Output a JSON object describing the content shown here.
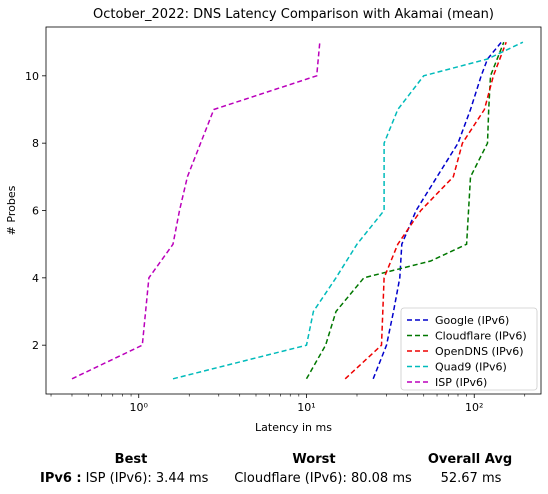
{
  "chart_data": {
    "type": "line",
    "title": "October_2022: DNS Latency Comparison with Akamai (mean)",
    "xlabel": "Latency in ms",
    "ylabel": "# Probes",
    "xscale": "log",
    "xlim": [
      0.28,
      250
    ],
    "ylim": [
      0.55,
      11.45
    ],
    "xticks": [
      {
        "value": 1,
        "label": "10⁰"
      },
      {
        "value": 10,
        "label": "10¹"
      },
      {
        "value": 100,
        "label": "10²"
      }
    ],
    "yticks": [
      2,
      4,
      6,
      8,
      10
    ],
    "grid": false,
    "legend": "lower-right",
    "series": [
      {
        "name": "Google (IPv6)",
        "color": "#0000cc",
        "x": [
          25,
          30,
          33,
          36,
          37,
          45,
          60,
          80,
          95,
          110,
          120,
          145
        ],
        "y": [
          1,
          2,
          3,
          4,
          5,
          6,
          7,
          8,
          9,
          10,
          10.5,
          11
        ]
      },
      {
        "name": "Cloudflare (IPv6)",
        "color": "#007700",
        "x": [
          10,
          13,
          15,
          22,
          55,
          90,
          95,
          120,
          122,
          125,
          150
        ],
        "y": [
          1,
          2,
          3,
          4,
          4.5,
          5,
          7,
          8,
          9,
          10,
          11
        ]
      },
      {
        "name": "OpenDNS (IPv6)",
        "color": "#ee0000",
        "x": [
          17,
          28,
          28.5,
          29,
          35,
          48,
          75,
          85,
          115,
          130,
          155
        ],
        "y": [
          1,
          2,
          3,
          4,
          5,
          6,
          7,
          8,
          9,
          10,
          11
        ]
      },
      {
        "name": "Quad9 (IPv6)",
        "color": "#00bbbb",
        "x": [
          1.6,
          10,
          11,
          15,
          20,
          29,
          29,
          29,
          35,
          50,
          120,
          195
        ],
        "y": [
          1,
          2,
          3,
          4,
          5,
          6,
          7,
          8,
          9,
          10,
          10.5,
          11
        ]
      },
      {
        "name": "ISP (IPv6)",
        "color": "#bb00bb",
        "x": [
          0.4,
          1.05,
          1.15,
          1.6,
          1.75,
          1.95,
          2.8,
          11.5,
          12
        ],
        "y": [
          1,
          2,
          4,
          5,
          6,
          7,
          9,
          10,
          11
        ]
      }
    ]
  },
  "summary": {
    "row_label": "IPv6 :",
    "best_header": "Best",
    "worst_header": "Worst",
    "avg_header": "Overall Avg",
    "best_value": "ISP (IPv6): 3.44 ms",
    "worst_value": "Cloudflare (IPv6): 80.08 ms",
    "avg_value": "52.67 ms"
  }
}
